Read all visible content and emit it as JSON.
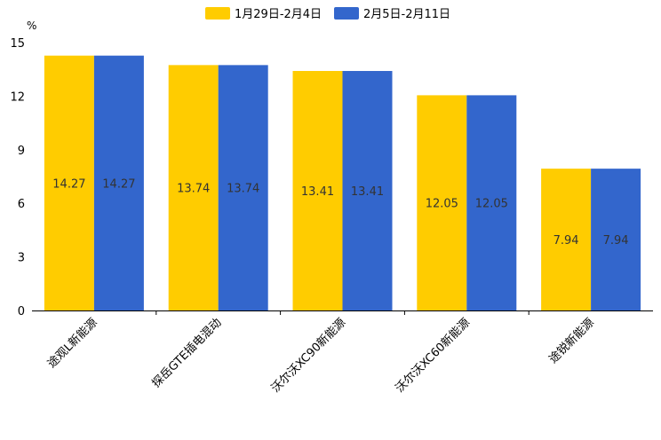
{
  "chart_data": {
    "type": "bar",
    "title": "",
    "unit": "%",
    "categories": [
      "途观L新能源",
      "探岳GTE插电混动",
      "沃尔沃XC90新能源",
      "沃尔沃XC60新能源",
      "途锐新能源"
    ],
    "series": [
      {
        "name": "1月29日-2月4日",
        "color": "#FFCC00",
        "values": [
          14.27,
          13.74,
          13.41,
          12.05,
          7.94
        ]
      },
      {
        "name": "2月5日-2月11日",
        "color": "#3366CC",
        "values": [
          14.27,
          13.74,
          13.41,
          12.05,
          7.94
        ]
      }
    ],
    "y_ticks": [
      0,
      3,
      6,
      9,
      12,
      15
    ],
    "ylim": [
      0,
      15
    ],
    "legend_position": "top-center",
    "grid": false
  }
}
